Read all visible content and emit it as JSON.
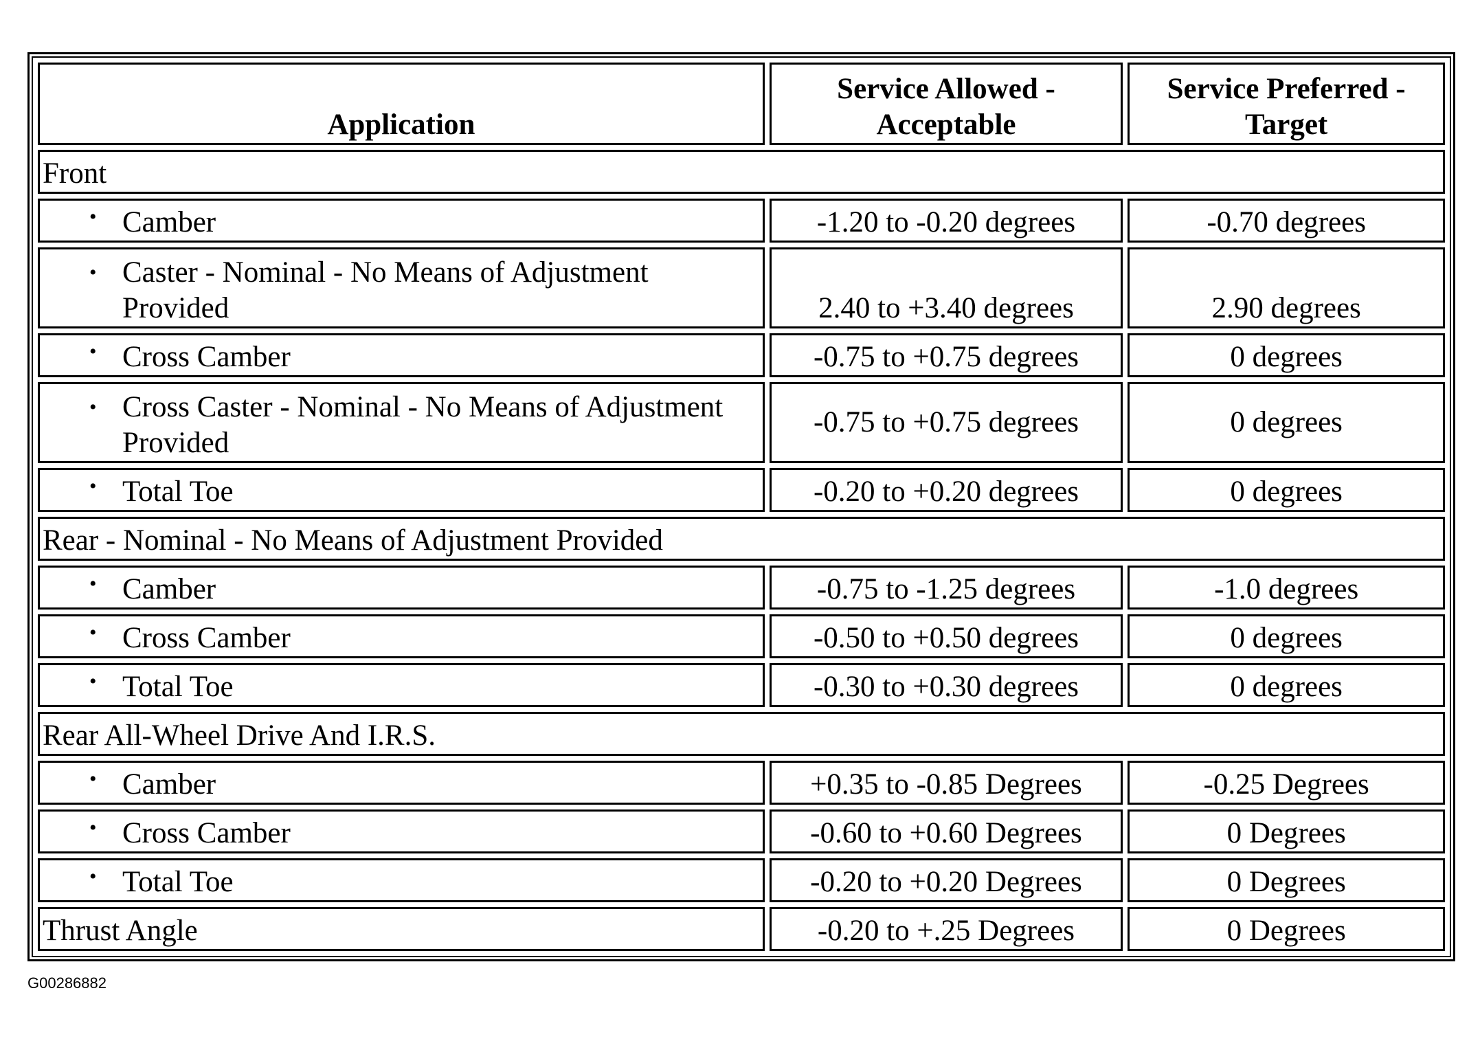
{
  "headers": {
    "application": "Application",
    "allowed": "Service Allowed - Acceptable",
    "preferred": "Service Preferred - Target"
  },
  "sections": [
    {
      "title": "Front",
      "rows": [
        {
          "label": "Camber",
          "allowed": "-1.20 to -0.20 degrees",
          "preferred": "-0.70 degrees"
        },
        {
          "label": "Caster - Nominal - No Means of Adjustment Provided",
          "allowed": "2.40 to +3.40 degrees",
          "preferred": "2.90 degrees"
        },
        {
          "label": "Cross Camber",
          "allowed": "-0.75 to +0.75 degrees",
          "preferred": "0 degrees"
        },
        {
          "label": "Cross Caster - Nominal - No Means of Adjustment Provided",
          "allowed": "-0.75 to +0.75 degrees",
          "preferred": "0 degrees"
        },
        {
          "label": "Total Toe",
          "allowed": "-0.20 to +0.20 degrees",
          "preferred": "0 degrees"
        }
      ]
    },
    {
      "title": "Rear - Nominal - No Means of Adjustment Provided",
      "rows": [
        {
          "label": "Camber",
          "allowed": "-0.75 to -1.25 degrees",
          "preferred": "-1.0 degrees"
        },
        {
          "label": "Cross Camber",
          "allowed": "-0.50 to +0.50 degrees",
          "preferred": "0 degrees"
        },
        {
          "label": "Total Toe",
          "allowed": "-0.30 to +0.30 degrees",
          "preferred": "0 degrees"
        }
      ]
    },
    {
      "title": "Rear All-Wheel Drive And I.R.S.",
      "rows": [
        {
          "label": "Camber",
          "allowed": "+0.35 to -0.85 Degrees",
          "preferred": "-0.25 Degrees"
        },
        {
          "label": "Cross Camber",
          "allowed": "-0.60 to +0.60 Degrees",
          "preferred": "0 Degrees"
        },
        {
          "label": "Total Toe",
          "allowed": "-0.20 to +0.20 Degrees",
          "preferred": "0 Degrees"
        }
      ]
    }
  ],
  "thrust": {
    "label": "Thrust Angle",
    "allowed": "-0.20 to +.25 Degrees",
    "preferred": "0 Degrees"
  },
  "figure_id": "G00286882",
  "bullet": "•"
}
